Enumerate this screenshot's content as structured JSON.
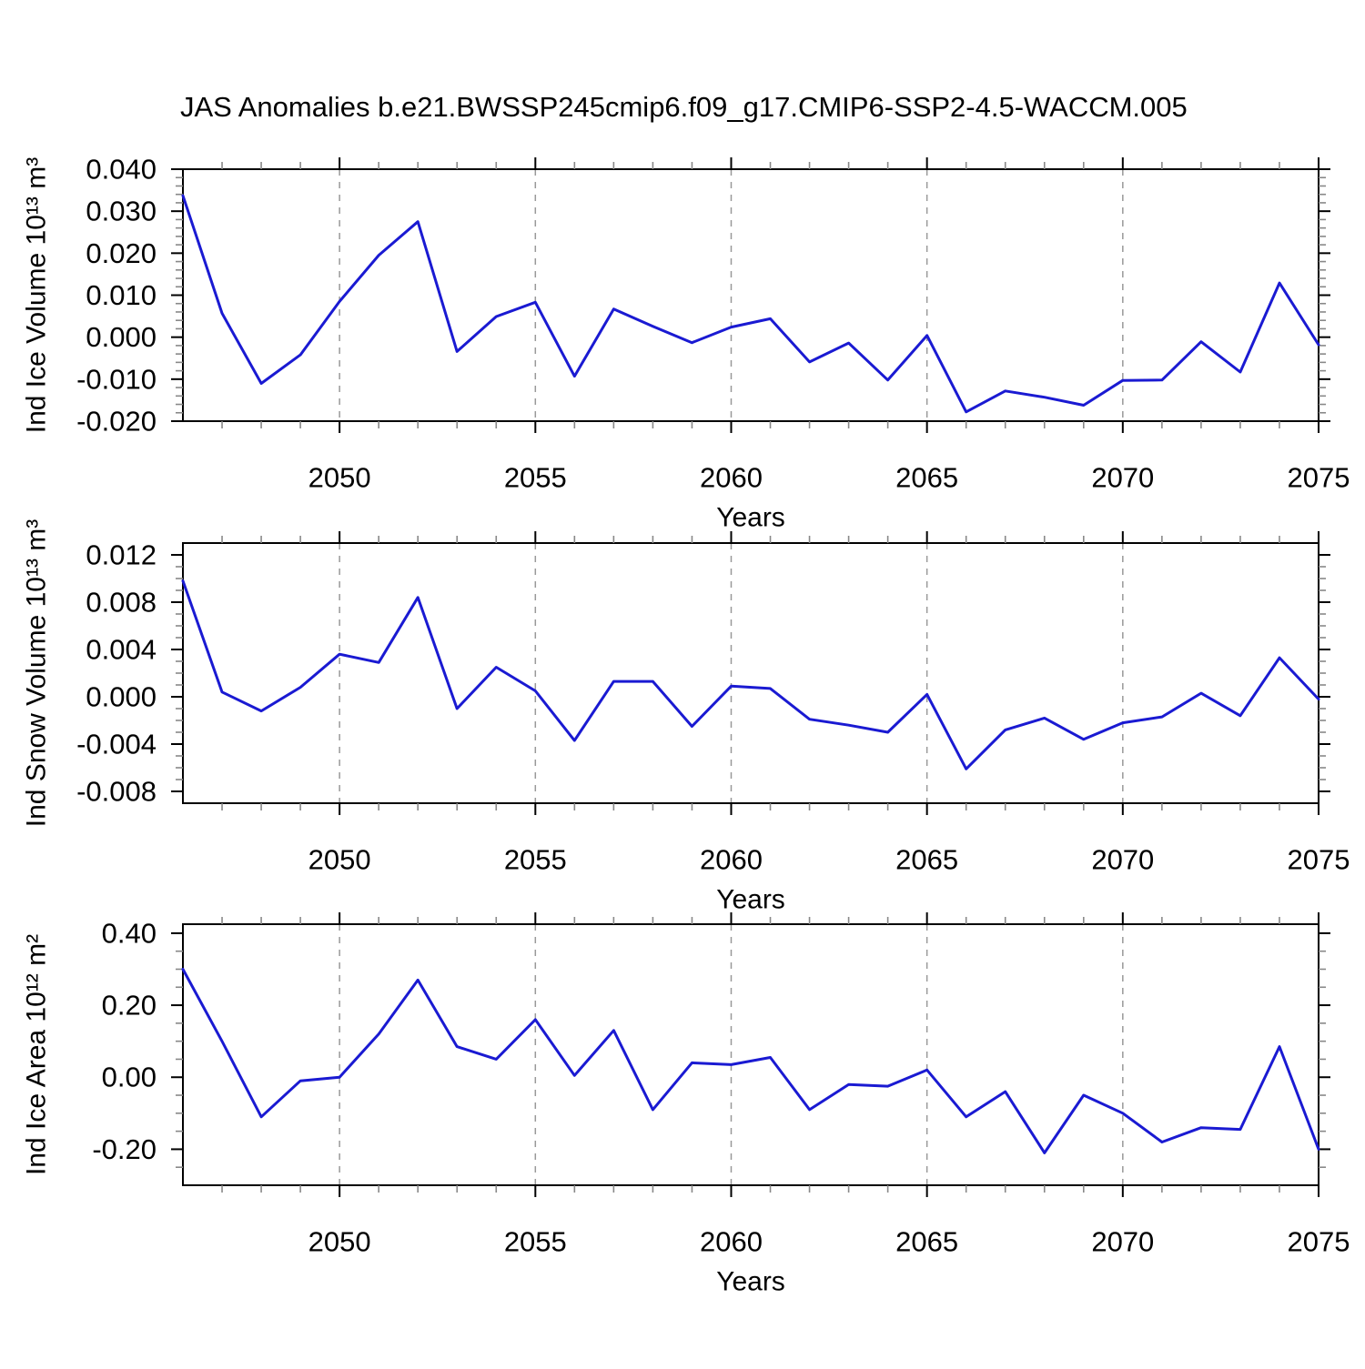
{
  "title": "JAS Anomalies b.e21.BWSSP245cmip6.f09_g17.CMIP6-SSP2-4.5-WACCM.005",
  "colors": {
    "line": "#1a1ad2",
    "frame": "#000000",
    "major_tick": "#000000",
    "minor_tick": "#888888",
    "grid": "#999999",
    "text": "#000000",
    "background": "#ffffff"
  },
  "x_axis": {
    "label": "Years",
    "range": [
      2046,
      2075
    ],
    "tick_values": [
      2050,
      2055,
      2060,
      2065,
      2070,
      2075
    ],
    "tick_labels": [
      "2050",
      "2055",
      "2060",
      "2065",
      "2070",
      "2075"
    ],
    "minor_step": 1,
    "grid_years": [
      2050,
      2055,
      2060,
      2065,
      2070
    ]
  },
  "chart_data": [
    {
      "type": "line",
      "name": "ind-ice-volume",
      "ylabel": "Ind Ice Volume 10¹³ m³",
      "xlabel": "Years",
      "legend": "none",
      "grid": "vertical-dashed",
      "x": [
        2046,
        2047,
        2048,
        2049,
        2050,
        2051,
        2052,
        2053,
        2054,
        2055,
        2056,
        2057,
        2058,
        2059,
        2060,
        2061,
        2062,
        2063,
        2064,
        2065,
        2066,
        2067,
        2068,
        2069,
        2070,
        2071,
        2072,
        2073,
        2074,
        2075
      ],
      "values": [
        0.0337,
        0.0057,
        -0.011,
        -0.0042,
        0.0085,
        0.0195,
        0.0275,
        -0.0034,
        0.0049,
        0.0083,
        -0.0093,
        0.0067,
        0.0026,
        -0.0013,
        0.0024,
        0.0044,
        -0.0059,
        -0.0014,
        -0.0102,
        0.0004,
        -0.0178,
        -0.0128,
        -0.0143,
        -0.0162,
        -0.0103,
        -0.0102,
        -0.0011,
        -0.0083,
        0.0129,
        -0.0018
      ],
      "ylim": [
        -0.02,
        0.04
      ],
      "ytick_values": [
        0.04,
        0.03,
        0.02,
        0.01,
        0.0,
        -0.01,
        -0.02
      ],
      "ytick_labels": [
        "0.040",
        "0.030",
        "0.020",
        "0.010",
        "0.000",
        "-0.010",
        "-0.020"
      ],
      "y_minor_step": 0.002
    },
    {
      "type": "line",
      "name": "ind-snow-volume",
      "ylabel": "Ind Snow Volume 10¹³ m³",
      "xlabel": "Years",
      "legend": "none",
      "grid": "vertical-dashed",
      "x": [
        2046,
        2047,
        2048,
        2049,
        2050,
        2051,
        2052,
        2053,
        2054,
        2055,
        2056,
        2057,
        2058,
        2059,
        2060,
        2061,
        2062,
        2063,
        2064,
        2065,
        2066,
        2067,
        2068,
        2069,
        2070,
        2071,
        2072,
        2073,
        2074,
        2075
      ],
      "values": [
        0.0098,
        0.0004,
        -0.0012,
        0.0008,
        0.0036,
        0.0029,
        0.0084,
        -0.001,
        0.0025,
        0.0005,
        -0.0037,
        0.0013,
        0.0013,
        -0.0025,
        0.0009,
        0.0007,
        -0.0019,
        -0.0024,
        -0.003,
        0.0002,
        -0.0061,
        -0.0028,
        -0.0018,
        -0.0036,
        -0.0022,
        -0.0017,
        0.0003,
        -0.0016,
        0.0033,
        -0.0002
      ],
      "ylim": [
        -0.009,
        0.013
      ],
      "ytick_values": [
        0.012,
        0.008,
        0.004,
        0.0,
        -0.004,
        -0.008
      ],
      "ytick_labels": [
        "0.012",
        "0.008",
        "0.004",
        "0.000",
        "-0.004",
        "-0.008"
      ],
      "y_minor_step": 0.001
    },
    {
      "type": "line",
      "name": "ind-ice-area",
      "ylabel": "Ind Ice Area 10¹² m²",
      "xlabel": "Years",
      "legend": "none",
      "grid": "vertical-dashed",
      "x": [
        2046,
        2047,
        2048,
        2049,
        2050,
        2051,
        2052,
        2053,
        2054,
        2055,
        2056,
        2057,
        2058,
        2059,
        2060,
        2061,
        2062,
        2063,
        2064,
        2065,
        2066,
        2067,
        2068,
        2069,
        2070,
        2071,
        2072,
        2073,
        2074,
        2075
      ],
      "values": [
        0.3,
        0.1,
        -0.11,
        -0.01,
        0.0,
        0.12,
        0.27,
        0.085,
        0.05,
        0.16,
        0.005,
        0.13,
        -0.09,
        0.04,
        0.035,
        0.055,
        -0.09,
        -0.02,
        -0.025,
        0.02,
        -0.11,
        -0.04,
        -0.21,
        -0.05,
        -0.1,
        -0.18,
        -0.14,
        -0.145,
        0.085,
        -0.2
      ],
      "ylim": [
        -0.3,
        0.425
      ],
      "ytick_values": [
        0.4,
        0.2,
        0.0,
        -0.2
      ],
      "ytick_labels": [
        "0.40",
        "0.20",
        "0.00",
        "-0.20"
      ],
      "y_minor_step": 0.05
    }
  ]
}
